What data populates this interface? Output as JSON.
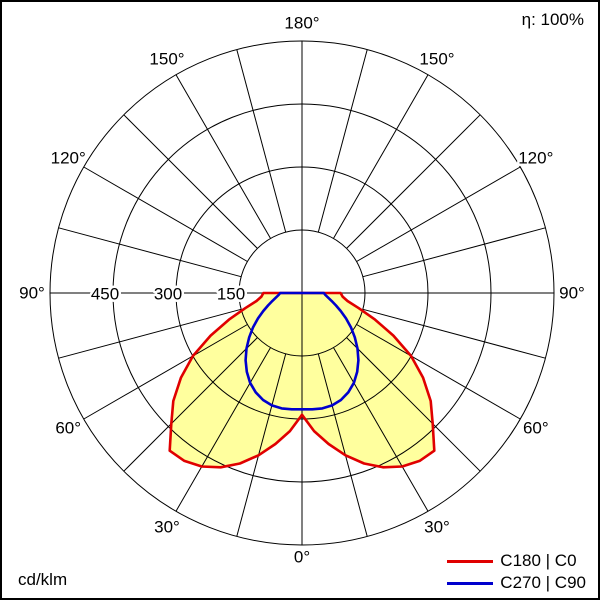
{
  "header": {
    "eta_label": "η: 100%"
  },
  "footer": {
    "unit_label": "cd/klm"
  },
  "legend": {
    "items": [
      {
        "label": "C180 | C0",
        "color": "#e00000"
      },
      {
        "label": "C270 | C90",
        "color": "#0000cd"
      }
    ]
  },
  "chart_data": {
    "type": "line",
    "subtype": "polar-photometric-intensity",
    "unit": "cd/klm",
    "efficiency": "100%",
    "rings": [
      150,
      300,
      450,
      600
    ],
    "ring_axis_labels": [
      "150",
      "300",
      "450"
    ],
    "angle_grid_step_deg": 15,
    "gamma_step_deg": 5,
    "symmetric": true,
    "angle_labels": [
      {
        "gamma": 0,
        "text": "0°",
        "mirror": false
      },
      {
        "gamma": 30,
        "text": "30°",
        "mirror": true
      },
      {
        "gamma": 60,
        "text": "60°",
        "mirror": true
      },
      {
        "gamma": 90,
        "text": "90°",
        "mirror": true
      },
      {
        "gamma": 120,
        "text": "120°",
        "mirror": true
      },
      {
        "gamma": 150,
        "text": "150°",
        "mirror": true
      },
      {
        "gamma": 180,
        "text": "180°",
        "mirror": false
      }
    ],
    "series": [
      {
        "name": "C180 | C0",
        "color": "#e00000",
        "fill": "#ffff9e",
        "values": [
          290,
          330,
          365,
          400,
          432,
          458,
          477,
          488,
          490,
          440,
          400,
          352,
          300,
          240,
          185,
          140,
          110,
          97,
          92
        ]
      },
      {
        "name": "C270 | C90",
        "color": "#0000cd",
        "fill": "none",
        "values": [
          277,
          278,
          279,
          277,
          271,
          261,
          247,
          229,
          209,
          187,
          164,
          142,
          121,
          102,
          86,
          73,
          63,
          56,
          52
        ]
      }
    ],
    "legend_position": "bottom-right"
  }
}
